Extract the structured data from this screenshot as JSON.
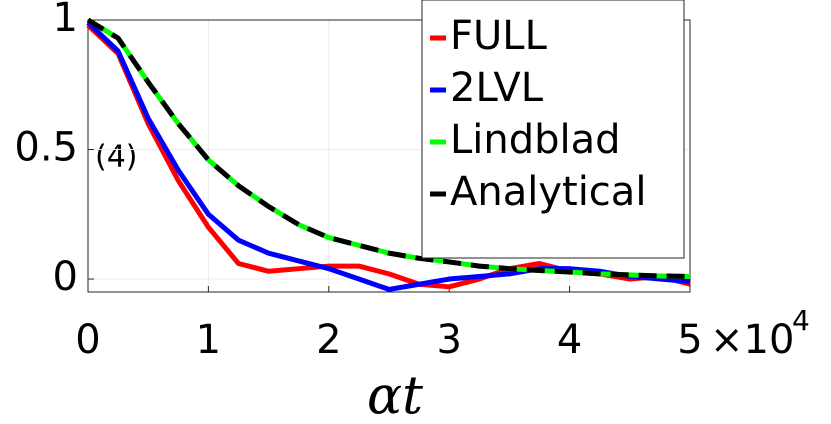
{
  "chart_data": {
    "type": "line",
    "x": [
      0,
      0.25,
      0.5,
      0.75,
      1,
      1.25,
      1.5,
      1.75,
      2,
      2.25,
      2.5,
      2.75,
      3,
      3.25,
      3.5,
      3.75,
      4,
      4.25,
      4.5,
      4.75,
      5
    ],
    "series": [
      {
        "name": "FULL",
        "color": "#ff0000",
        "dash": false,
        "values": [
          0.98,
          0.87,
          0.6,
          0.38,
          0.2,
          0.06,
          0.03,
          0.04,
          0.05,
          0.05,
          0.02,
          -0.02,
          -0.03,
          0.0,
          0.04,
          0.06,
          0.03,
          0.02,
          0.0,
          0.01,
          -0.02
        ]
      },
      {
        "name": "2LVL",
        "color": "#0000ff",
        "dash": false,
        "values": [
          0.99,
          0.88,
          0.62,
          0.42,
          0.25,
          0.15,
          0.1,
          0.07,
          0.04,
          0.0,
          -0.04,
          -0.02,
          0.0,
          0.01,
          0.02,
          0.04,
          0.04,
          0.03,
          0.01,
          0.0,
          -0.01
        ]
      },
      {
        "name": "Lindblad",
        "color": "#00ff00",
        "dash": false,
        "values": [
          1,
          0.93,
          0.76,
          0.6,
          0.46,
          0.36,
          0.28,
          0.21,
          0.16,
          0.13,
          0.1,
          0.08,
          0.066,
          0.05,
          0.04,
          0.033,
          0.027,
          0.02,
          0.016,
          0.012,
          0.01
        ]
      },
      {
        "name": "Analytical",
        "color": "#000000",
        "dash": true,
        "values": [
          1,
          0.93,
          0.76,
          0.6,
          0.46,
          0.36,
          0.28,
          0.21,
          0.16,
          0.13,
          0.1,
          0.08,
          0.066,
          0.05,
          0.04,
          0.033,
          0.027,
          0.02,
          0.016,
          0.012,
          0.01
        ]
      }
    ],
    "xlim": [
      0,
      5
    ],
    "xticks": [
      0,
      1,
      2,
      3,
      4,
      5
    ],
    "ylim": [
      -0.05,
      1
    ],
    "yticks": [
      0,
      0.5,
      1
    ],
    "x_multiplier": "×10",
    "x_multiplier_exponent": "4",
    "x_label": "αt",
    "annotation": "(4)",
    "grid": true,
    "legend": "upper right"
  }
}
